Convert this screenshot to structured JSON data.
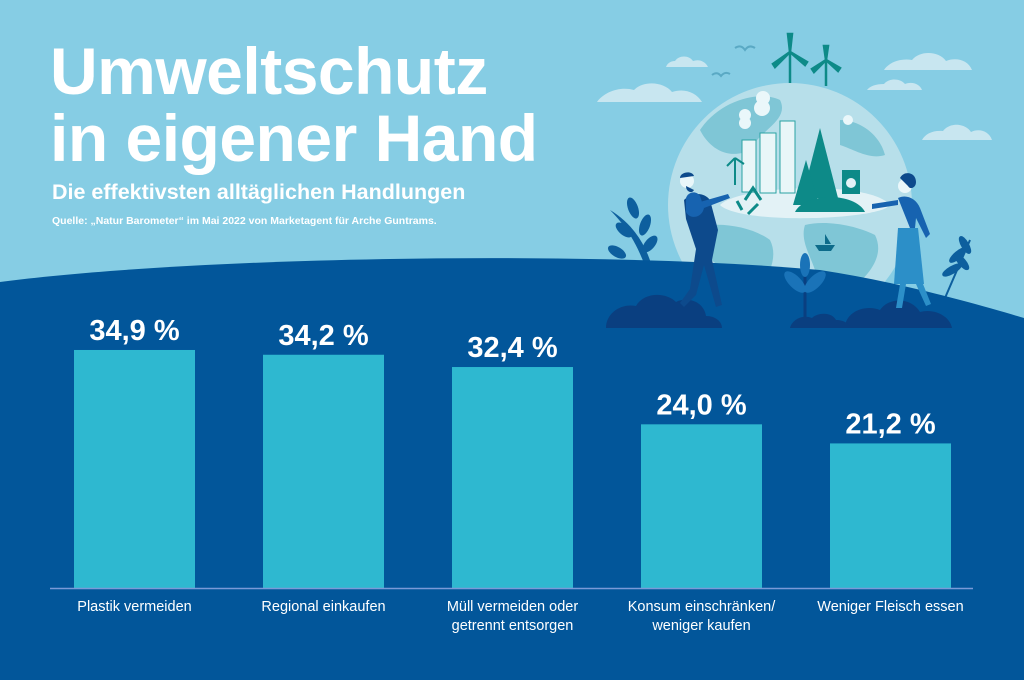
{
  "header": {
    "title_line1": "Umweltschutz",
    "title_line2": "in eigener Hand",
    "subtitle": "Die effektivsten alltäglichen Handlungen",
    "source": "Quelle: „Natur Barometer“ im Mai 2022 von Marketagent für Arche Guntrams."
  },
  "illustration": {
    "description": "Two people holding a globe with city, trees, wind turbines, recycling symbol and plants",
    "icons": [
      "globe-icon",
      "wind-turbine-icon",
      "recycle-icon",
      "tree-icon",
      "building-icon",
      "trash-bin-icon",
      "plant-icon",
      "cloud-icon",
      "bird-icon",
      "person-icon",
      "boat-icon"
    ]
  },
  "colors": {
    "sky": "#86cde4",
    "ground": "#02569a",
    "bar": "#2eb8d0",
    "baseline": "#7a9ad8",
    "text": "#ffffff"
  },
  "chart_data": {
    "type": "bar",
    "title": "Die effektivsten alltäglichen Handlungen",
    "categories": [
      [
        "Plastik vermeiden"
      ],
      [
        "Regional einkaufen"
      ],
      [
        "Müll vermeiden oder",
        "getrennt entsorgen"
      ],
      [
        "Konsum einschränken/",
        "weniger kaufen"
      ],
      [
        "Weniger Fleisch essen"
      ]
    ],
    "values": [
      34.9,
      34.2,
      32.4,
      24.0,
      21.2
    ],
    "value_labels": [
      "34,9 %",
      "34,2 %",
      "32,4 %",
      "24,0 %",
      "21,2 %"
    ],
    "unit": "%",
    "xlabel": "",
    "ylabel": "",
    "ylim": [
      0,
      40
    ],
    "grid": false,
    "legend": "none"
  }
}
